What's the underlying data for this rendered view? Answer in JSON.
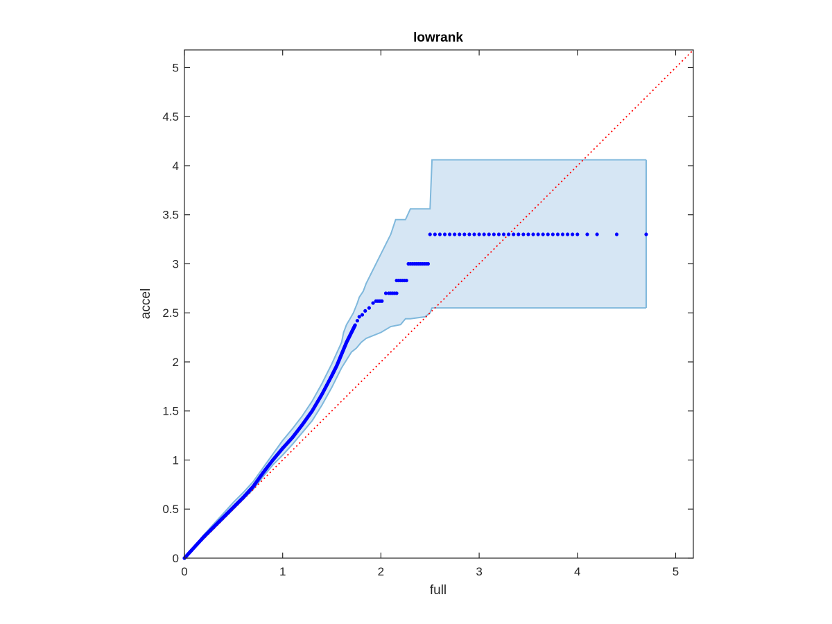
{
  "chart_data": {
    "type": "scatter",
    "title": "lowrank",
    "xlabel": "full",
    "ylabel": "accel",
    "xlim": [
      0,
      5.18
    ],
    "ylim": [
      0,
      5.18
    ],
    "xticks": [
      "0",
      "1",
      "2",
      "3",
      "4",
      "5"
    ],
    "yticks": [
      "0",
      "0.5",
      "1",
      "1.5",
      "2",
      "2.5",
      "3",
      "3.5",
      "4",
      "4.5",
      "5"
    ],
    "grid": false,
    "colors": {
      "points": "#0000ff",
      "band_fill": "#d6e6f4",
      "band_edge": "#7fb8dc",
      "reference": "#ff0000"
    },
    "reference_line": {
      "style": "dotted",
      "x": [
        0,
        5.18
      ],
      "y": [
        0,
        5.18
      ]
    },
    "band_upper": {
      "x": [
        0,
        0.1,
        0.2,
        0.3,
        0.4,
        0.5,
        0.6,
        0.7,
        0.8,
        0.9,
        1.0,
        1.1,
        1.2,
        1.3,
        1.4,
        1.5,
        1.6,
        1.62,
        1.65,
        1.68,
        1.72,
        1.76,
        1.78,
        1.82,
        1.85,
        1.88,
        1.9,
        1.95,
        2.0,
        2.05,
        2.1,
        2.15,
        2.25,
        2.3,
        2.5,
        2.52,
        4.7
      ],
      "y": [
        0,
        0.12,
        0.24,
        0.35,
        0.46,
        0.57,
        0.67,
        0.78,
        0.92,
        1.06,
        1.2,
        1.32,
        1.45,
        1.6,
        1.78,
        1.98,
        2.2,
        2.3,
        2.38,
        2.43,
        2.5,
        2.6,
        2.66,
        2.72,
        2.8,
        2.86,
        2.9,
        3.0,
        3.1,
        3.2,
        3.3,
        3.45,
        3.45,
        3.56,
        3.56,
        4.06,
        4.06
      ]
    },
    "band_lower": {
      "x": [
        0,
        0.1,
        0.2,
        0.3,
        0.4,
        0.5,
        0.6,
        0.7,
        0.8,
        0.9,
        1.0,
        1.1,
        1.2,
        1.3,
        1.4,
        1.5,
        1.6,
        1.7,
        1.75,
        1.8,
        1.85,
        1.9,
        2.0,
        2.1,
        2.2,
        2.25,
        2.3,
        2.45,
        2.5,
        2.52,
        4.7
      ],
      "y": [
        0,
        0.1,
        0.2,
        0.3,
        0.4,
        0.5,
        0.6,
        0.7,
        0.83,
        0.95,
        1.05,
        1.16,
        1.28,
        1.4,
        1.56,
        1.74,
        1.94,
        2.1,
        2.14,
        2.2,
        2.24,
        2.26,
        2.3,
        2.36,
        2.38,
        2.44,
        2.44,
        2.46,
        2.5,
        2.55,
        2.55
      ]
    },
    "series": [
      {
        "curve": {
          "x": [
            0,
            0.1,
            0.2,
            0.3,
            0.4,
            0.5,
            0.6,
            0.7,
            0.8,
            0.9,
            1.0,
            1.1,
            1.2,
            1.3,
            1.4,
            1.5,
            1.55,
            1.6,
            1.65,
            1.7,
            1.74
          ],
          "y": [
            0,
            0.11,
            0.22,
            0.32,
            0.42,
            0.52,
            0.62,
            0.73,
            0.87,
            1.0,
            1.12,
            1.23,
            1.36,
            1.5,
            1.67,
            1.86,
            1.96,
            2.08,
            2.2,
            2.3,
            2.38
          ]
        },
        "scattered": {
          "x": [
            1.76,
            1.78,
            1.81,
            1.84,
            1.88,
            1.92
          ],
          "y": [
            2.42,
            2.46,
            2.48,
            2.52,
            2.55,
            2.6
          ]
        },
        "steps": [
          {
            "y": 2.62,
            "x": [
              1.95,
              1.97,
              1.99,
              2.01
            ]
          },
          {
            "y": 2.7,
            "x": [
              2.05,
              2.08,
              2.1,
              2.12,
              2.14,
              2.16
            ]
          },
          {
            "y": 2.83,
            "x": [
              2.16,
              2.18,
              2.2,
              2.22,
              2.24,
              2.26
            ]
          },
          {
            "y": 3.0,
            "x": [
              2.28,
              2.3,
              2.32,
              2.34,
              2.36,
              2.38,
              2.4,
              2.42,
              2.44,
              2.46,
              2.48
            ]
          },
          {
            "y": 3.3,
            "x": [
              2.5,
              2.55,
              2.6,
              2.65,
              2.7,
              2.75,
              2.8,
              2.85,
              2.9,
              2.95,
              3.0,
              3.05,
              3.1,
              3.15,
              3.2,
              3.25,
              3.3,
              3.35,
              3.4,
              3.45,
              3.5,
              3.55,
              3.6,
              3.65,
              3.7,
              3.75,
              3.8,
              3.85,
              3.9,
              3.95,
              4.0,
              4.1,
              4.2,
              4.4,
              4.7
            ]
          }
        ]
      }
    ]
  }
}
